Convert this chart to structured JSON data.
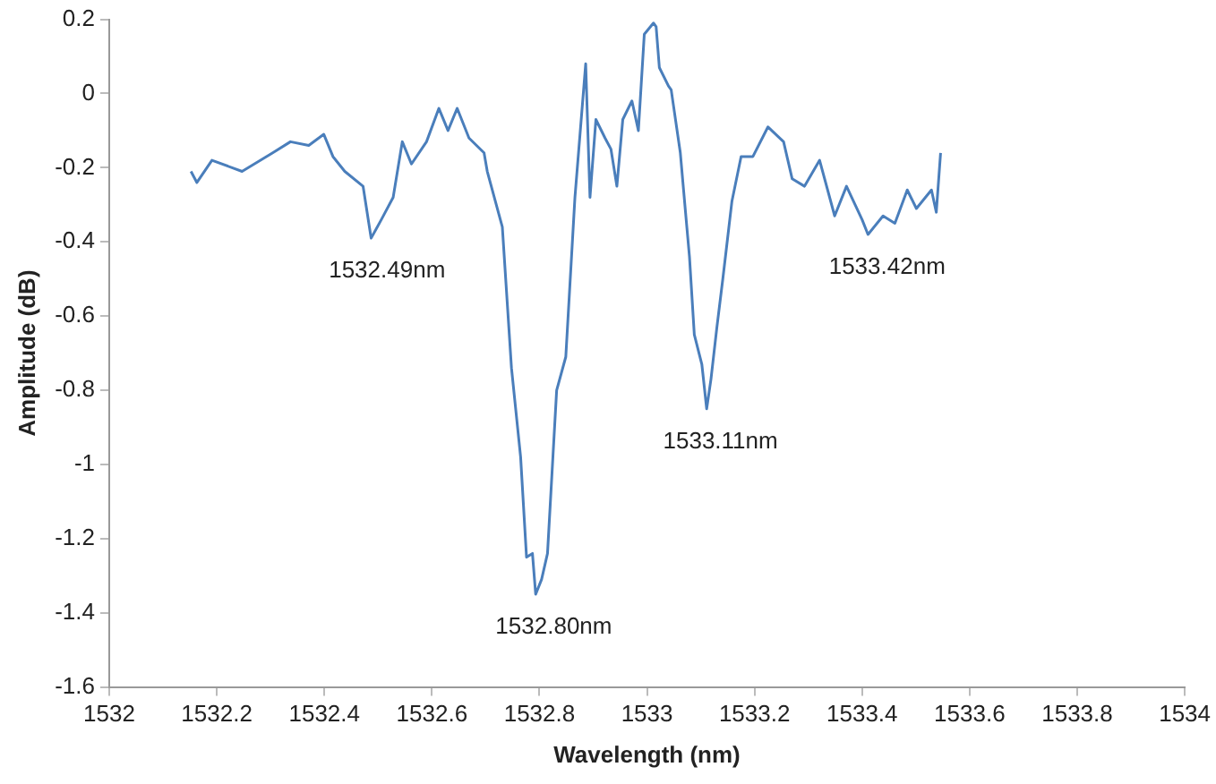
{
  "chart_data": {
    "type": "line",
    "xlabel": "Wavelength (nm)",
    "ylabel": "Amplitude (dB)",
    "xlim": [
      1532,
      1534
    ],
    "xticks": [
      1532,
      1532.2,
      1532.4,
      1532.6,
      1532.8,
      1533,
      1533.2,
      1533.4,
      1533.6,
      1533.8,
      1534
    ],
    "ylim": [
      -1.6,
      0.2
    ],
    "yticks": [
      -1.6,
      -1.4,
      -1.2,
      -1,
      -0.8,
      -0.6,
      -0.4,
      -0.2,
      0,
      0.2
    ],
    "grid": false,
    "legend": false,
    "marker": "none",
    "line_style": "solid",
    "series": [
      {
        "color": "#4a7ebb",
        "x": [
          1532.152,
          1532.163,
          1532.191,
          1532.247,
          1532.304,
          1532.337,
          1532.371,
          1532.399,
          1532.416,
          1532.438,
          1532.472,
          1532.487,
          1532.506,
          1532.528,
          1532.545,
          1532.562,
          1532.59,
          1532.613,
          1532.63,
          1532.647,
          1532.669,
          1532.697,
          1532.703,
          1532.731,
          1532.748,
          1532.765,
          1532.776,
          1532.787,
          1532.793,
          1532.804,
          1532.815,
          1532.832,
          1532.849,
          1532.866,
          1532.886,
          1532.894,
          1532.905,
          1532.922,
          1532.933,
          1532.944,
          1532.955,
          1532.972,
          1532.984,
          1532.995,
          1533.012,
          1533.017,
          1533.023,
          1533.04,
          1533.045,
          1533.062,
          1533.068,
          1533.079,
          1533.088,
          1533.102,
          1533.111,
          1533.119,
          1533.13,
          1533.141,
          1533.158,
          1533.175,
          1533.197,
          1533.225,
          1533.254,
          1533.27,
          1533.293,
          1533.321,
          1533.349,
          1533.371,
          1533.4,
          1533.411,
          1533.439,
          1533.461,
          1533.484,
          1533.501,
          1533.529,
          1533.538,
          1533.546
        ],
        "values": [
          -0.21,
          -0.24,
          -0.18,
          -0.21,
          -0.16,
          -0.13,
          -0.14,
          -0.11,
          -0.17,
          -0.21,
          -0.25,
          -0.39,
          -0.34,
          -0.28,
          -0.13,
          -0.19,
          -0.13,
          -0.04,
          -0.1,
          -0.04,
          -0.12,
          -0.16,
          -0.21,
          -0.36,
          -0.74,
          -0.98,
          -1.25,
          -1.24,
          -1.35,
          -1.31,
          -1.24,
          -0.8,
          -0.71,
          -0.28,
          0.08,
          -0.28,
          -0.07,
          -0.12,
          -0.15,
          -0.25,
          -0.07,
          -0.02,
          -0.1,
          0.16,
          0.19,
          0.18,
          0.07,
          0.02,
          0.01,
          -0.16,
          -0.26,
          -0.44,
          -0.65,
          -0.73,
          -0.85,
          -0.77,
          -0.63,
          -0.5,
          -0.29,
          -0.17,
          -0.17,
          -0.09,
          -0.13,
          -0.23,
          -0.25,
          -0.18,
          -0.33,
          -0.25,
          -0.34,
          -0.38,
          -0.33,
          -0.35,
          -0.26,
          -0.31,
          -0.26,
          -0.32,
          -0.16
        ]
      }
    ],
    "annotations": [
      {
        "text": "1532.49nm",
        "x": 1532.49,
        "y": -0.39
      },
      {
        "text": "1532.80nm",
        "x": 1532.8,
        "y": -1.35
      },
      {
        "text": "1533.11nm",
        "x": 1533.11,
        "y": -0.85
      },
      {
        "text": "1533.42nm",
        "x": 1533.42,
        "y": -0.38
      }
    ]
  }
}
